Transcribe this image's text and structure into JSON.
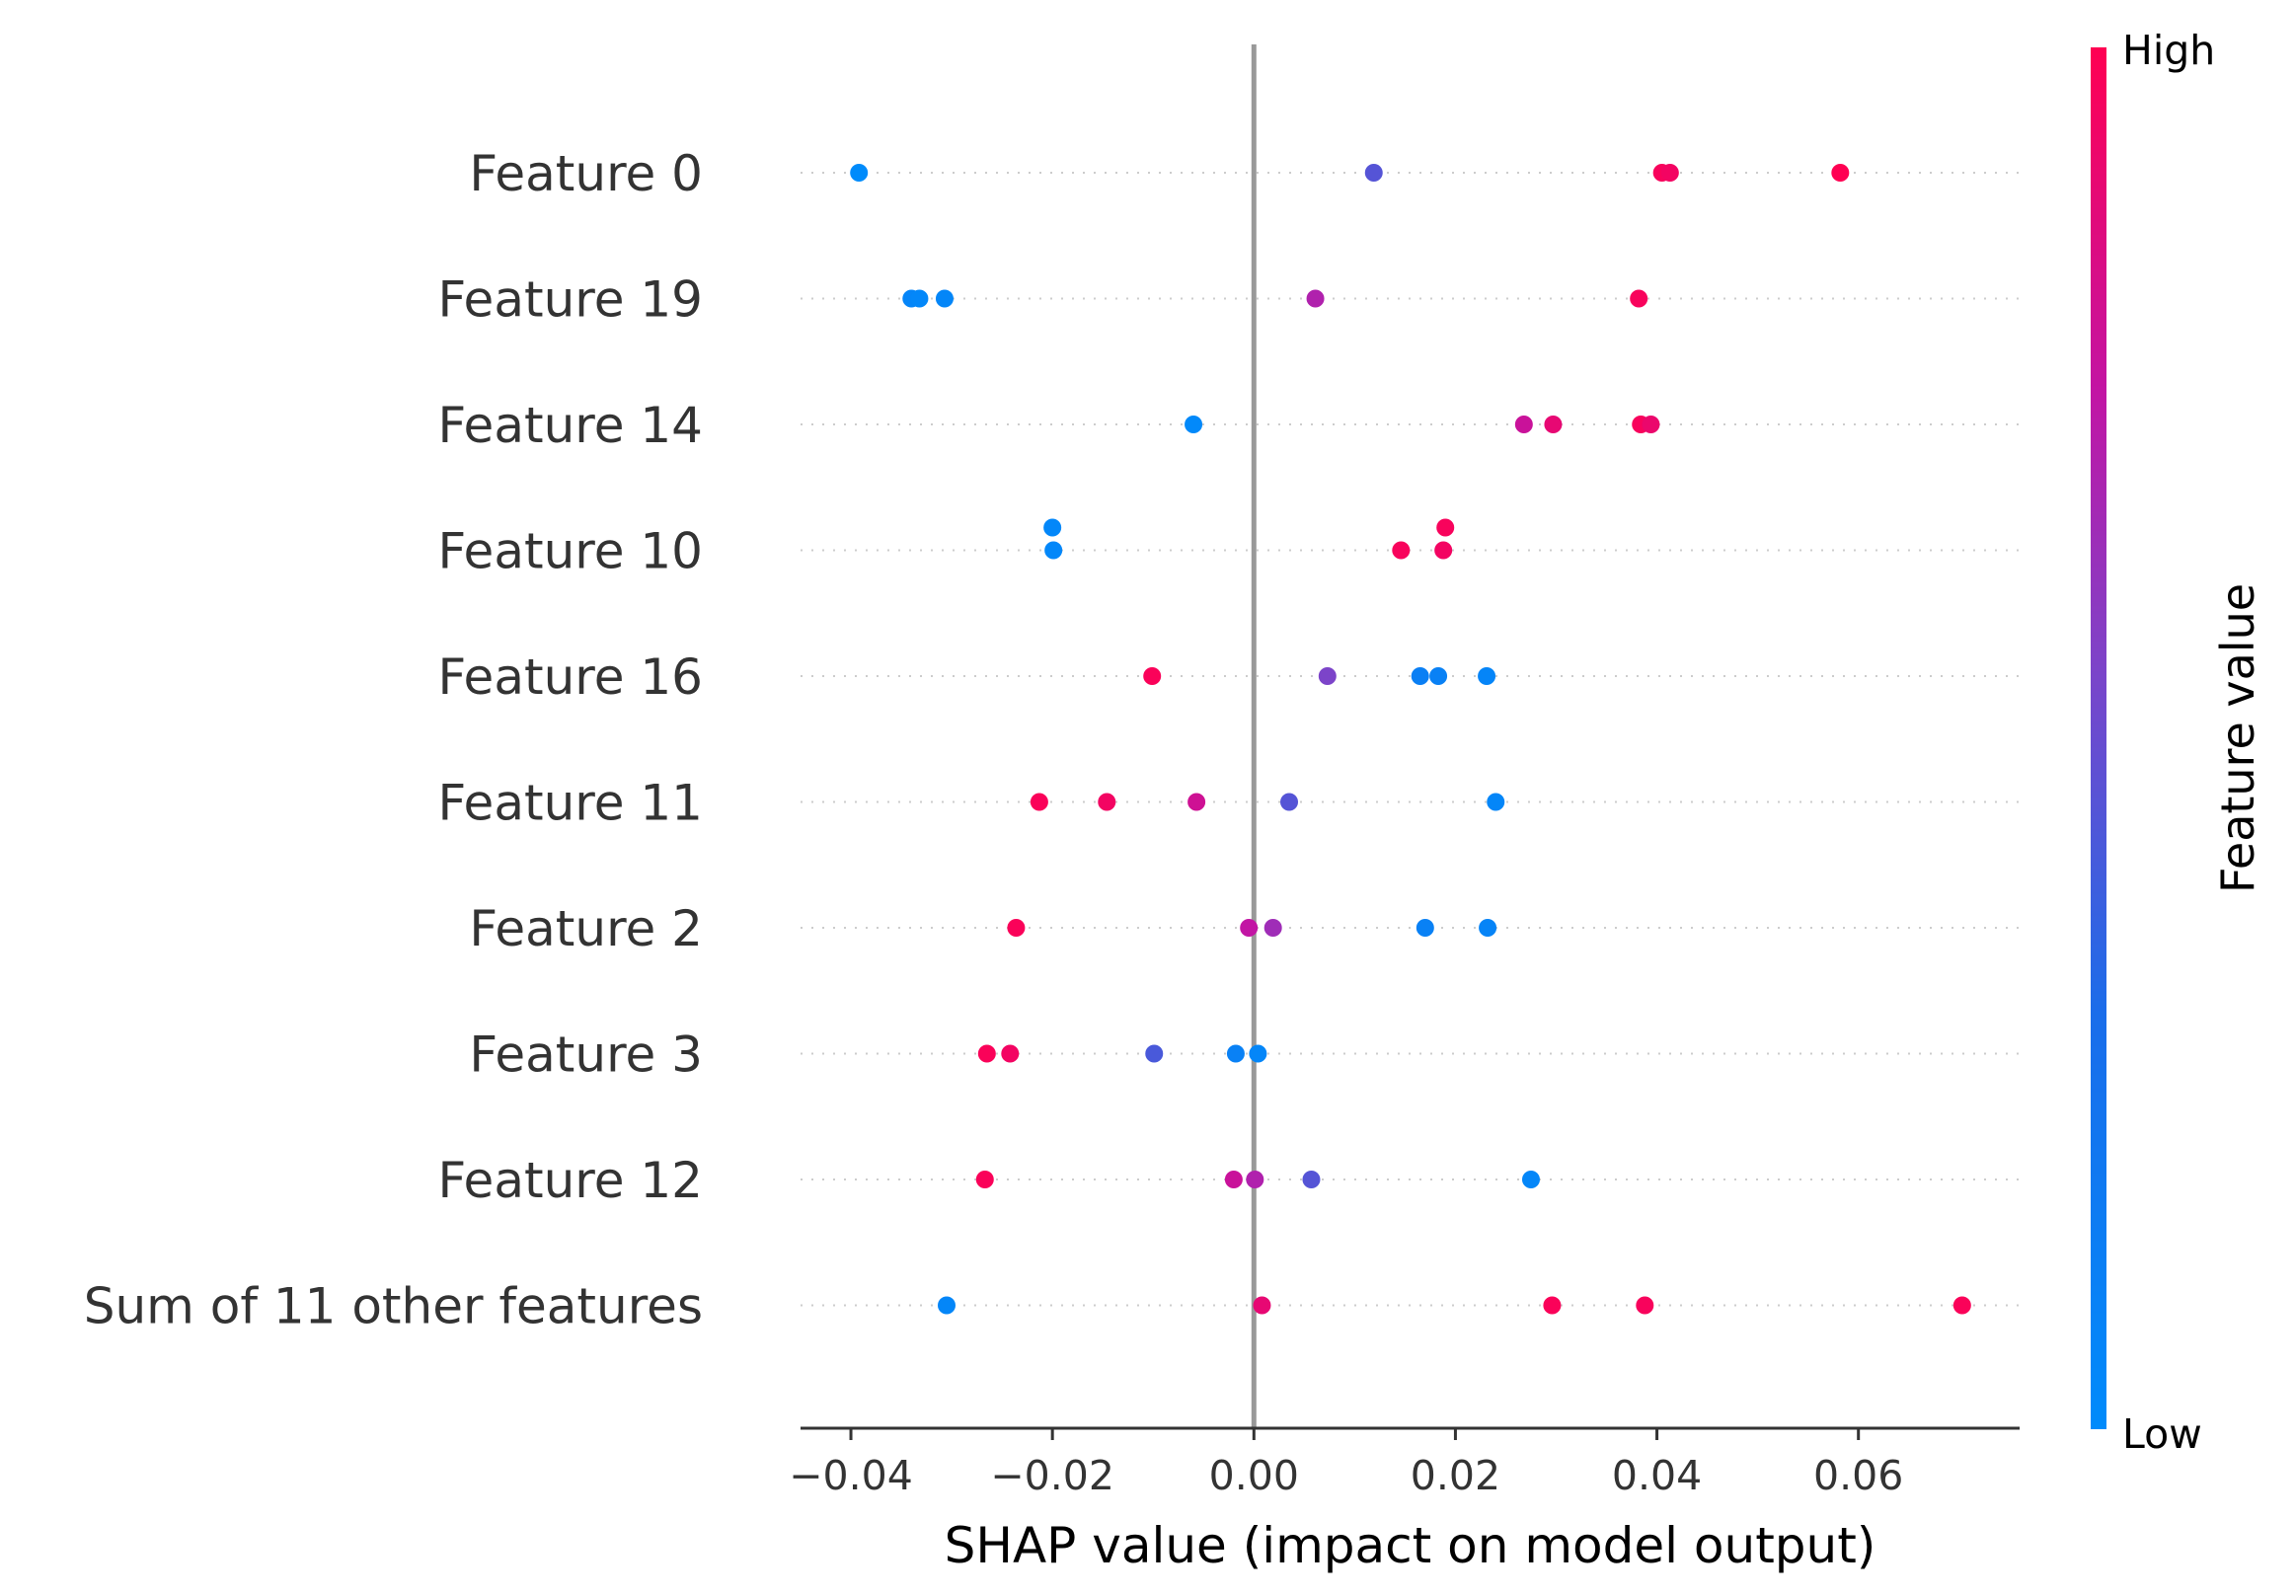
{
  "chart_data": {
    "type": "scatter",
    "subtype": "shap-beeswarm",
    "xlabel": "SHAP value (impact on model output)",
    "xlim": [
      -0.045,
      0.076
    ],
    "xticks": [
      -0.04,
      -0.02,
      0.0,
      0.02,
      0.04,
      0.06
    ],
    "xtick_labels": [
      "−0.04",
      "−0.02",
      "0.00",
      "0.02",
      "0.04",
      "0.06"
    ],
    "zero_line": true,
    "grid": "dotted horizontal guide per feature",
    "colorbar": {
      "title": "Feature value",
      "high_label": "High",
      "low_label": "Low",
      "high_color": "#ff0052",
      "low_color": "#008bfb",
      "placement": "right"
    },
    "features": [
      {
        "name": "Feature 0",
        "points": [
          {
            "x": -0.0392,
            "v": 0.0,
            "y_offset": 0
          },
          {
            "x": 0.0119,
            "v": 0.45,
            "y_offset": 0
          },
          {
            "x": 0.0405,
            "v": 0.97,
            "y_offset": 0
          },
          {
            "x": 0.0413,
            "v": 0.95,
            "y_offset": 0
          },
          {
            "x": 0.0582,
            "v": 1.0,
            "y_offset": 0
          }
        ]
      },
      {
        "name": "Feature 19",
        "points": [
          {
            "x": -0.034,
            "v": 0.06,
            "y_offset": 0
          },
          {
            "x": -0.0332,
            "v": 0.04,
            "y_offset": 0
          },
          {
            "x": -0.0307,
            "v": 0.05,
            "y_offset": 0
          },
          {
            "x": 0.0061,
            "v": 0.7,
            "y_offset": 0
          },
          {
            "x": 0.0382,
            "v": 0.97,
            "y_offset": 0
          }
        ]
      },
      {
        "name": "Feature 14",
        "points": [
          {
            "x": -0.006,
            "v": 0.02,
            "y_offset": 0
          },
          {
            "x": 0.0268,
            "v": 0.78,
            "y_offset": 0
          },
          {
            "x": 0.0297,
            "v": 0.9,
            "y_offset": 0
          },
          {
            "x": 0.0384,
            "v": 0.97,
            "y_offset": 0
          },
          {
            "x": 0.0394,
            "v": 0.92,
            "y_offset": 0
          }
        ]
      },
      {
        "name": "Feature 10",
        "points": [
          {
            "x": -0.02,
            "v": 0.04,
            "y_offset": -1
          },
          {
            "x": -0.0199,
            "v": 0.04,
            "y_offset": 0
          },
          {
            "x": 0.0146,
            "v": 0.97,
            "y_offset": 0
          },
          {
            "x": 0.019,
            "v": 0.97,
            "y_offset": -1
          },
          {
            "x": 0.0188,
            "v": 0.95,
            "y_offset": 0
          }
        ]
      },
      {
        "name": "Feature 16",
        "points": [
          {
            "x": -0.0101,
            "v": 0.98,
            "y_offset": 0
          },
          {
            "x": 0.0073,
            "v": 0.55,
            "y_offset": 0
          },
          {
            "x": 0.0165,
            "v": 0.12,
            "y_offset": 0
          },
          {
            "x": 0.0183,
            "v": 0.1,
            "y_offset": 0
          },
          {
            "x": 0.0231,
            "v": 0.06,
            "y_offset": 0
          }
        ]
      },
      {
        "name": "Feature 11",
        "points": [
          {
            "x": -0.0213,
            "v": 0.98,
            "y_offset": 0
          },
          {
            "x": -0.0146,
            "v": 0.95,
            "y_offset": 0
          },
          {
            "x": -0.0057,
            "v": 0.8,
            "y_offset": 0
          },
          {
            "x": 0.0035,
            "v": 0.45,
            "y_offset": 0
          },
          {
            "x": 0.024,
            "v": 0.05,
            "y_offset": 0
          }
        ]
      },
      {
        "name": "Feature 2",
        "points": [
          {
            "x": -0.0236,
            "v": 0.98,
            "y_offset": 0
          },
          {
            "x": -0.0005,
            "v": 0.75,
            "y_offset": 0
          },
          {
            "x": 0.0019,
            "v": 0.65,
            "y_offset": 0
          },
          {
            "x": 0.017,
            "v": 0.1,
            "y_offset": 0
          },
          {
            "x": 0.0232,
            "v": 0.07,
            "y_offset": 0
          }
        ]
      },
      {
        "name": "Feature 3",
        "points": [
          {
            "x": -0.0265,
            "v": 0.98,
            "y_offset": 0
          },
          {
            "x": -0.0242,
            "v": 0.95,
            "y_offset": 0
          },
          {
            "x": -0.0099,
            "v": 0.42,
            "y_offset": 0
          },
          {
            "x": -0.0018,
            "v": 0.1,
            "y_offset": 0
          },
          {
            "x": 0.0004,
            "v": 0.05,
            "y_offset": 0
          }
        ]
      },
      {
        "name": "Feature 12",
        "points": [
          {
            "x": -0.0267,
            "v": 0.98,
            "y_offset": 0
          },
          {
            "x": -0.002,
            "v": 0.78,
            "y_offset": 0
          },
          {
            "x": 0.0001,
            "v": 0.7,
            "y_offset": 0
          },
          {
            "x": 0.0057,
            "v": 0.45,
            "y_offset": 0
          },
          {
            "x": 0.0275,
            "v": 0.05,
            "y_offset": 0
          }
        ]
      },
      {
        "name": "Sum of 11 other features",
        "points": [
          {
            "x": -0.0305,
            "v": 0.05,
            "y_offset": 0
          },
          {
            "x": 0.0008,
            "v": 0.9,
            "y_offset": 0
          },
          {
            "x": 0.0296,
            "v": 0.98,
            "y_offset": 0
          },
          {
            "x": 0.0388,
            "v": 0.97,
            "y_offset": 0
          },
          {
            "x": 0.0703,
            "v": 0.98,
            "y_offset": 0
          }
        ]
      }
    ]
  }
}
